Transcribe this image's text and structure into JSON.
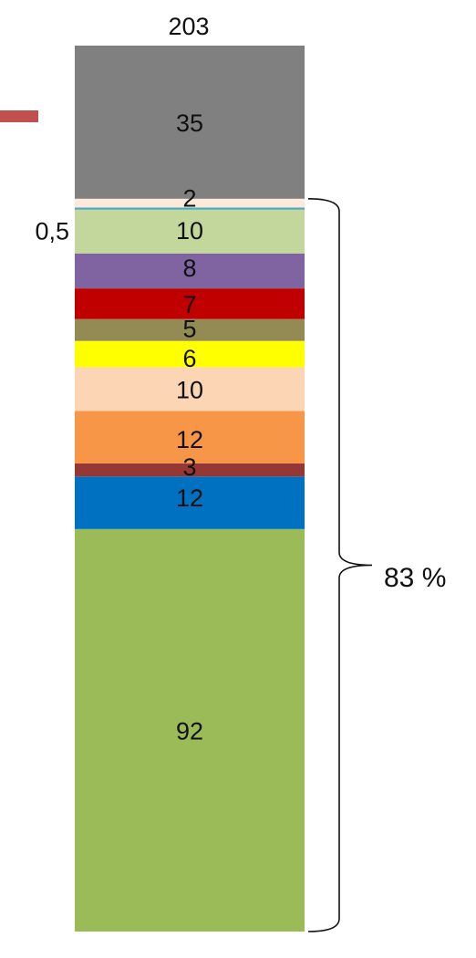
{
  "chart_data": {
    "type": "bar",
    "stacked": true,
    "total_label": "203",
    "series": [
      {
        "value": 92,
        "value_label": "92",
        "color": "#9BBB59"
      },
      {
        "value": 12,
        "value_label": "12",
        "color": "#0070C0"
      },
      {
        "value": 3,
        "value_label": "3",
        "color": "#953735"
      },
      {
        "value": 12,
        "value_label": "12",
        "color": "#F79646"
      },
      {
        "value": 10,
        "value_label": "10",
        "color": "#FCD5B5"
      },
      {
        "value": 6,
        "value_label": "6",
        "color": "#FFFF00"
      },
      {
        "value": 5,
        "value_label": "5",
        "color": "#948A54"
      },
      {
        "value": 7,
        "value_label": "7",
        "color": "#C00000"
      },
      {
        "value": 8,
        "value_label": "8",
        "color": "#8064A2"
      },
      {
        "value": 10,
        "value_label": "10",
        "color": "#C3D69B"
      },
      {
        "value": 0.5,
        "value_label": "0,5",
        "color": "#4BACC6"
      },
      {
        "value": 2,
        "value_label": "2",
        "color": "#FDE9D9"
      },
      {
        "value": 35,
        "value_label": "35",
        "color": "#808080"
      }
    ],
    "bracket": {
      "label": "83 %"
    },
    "grid": false,
    "legend": "none"
  },
  "colors": {
    "accent_tick": "#C0504D"
  }
}
